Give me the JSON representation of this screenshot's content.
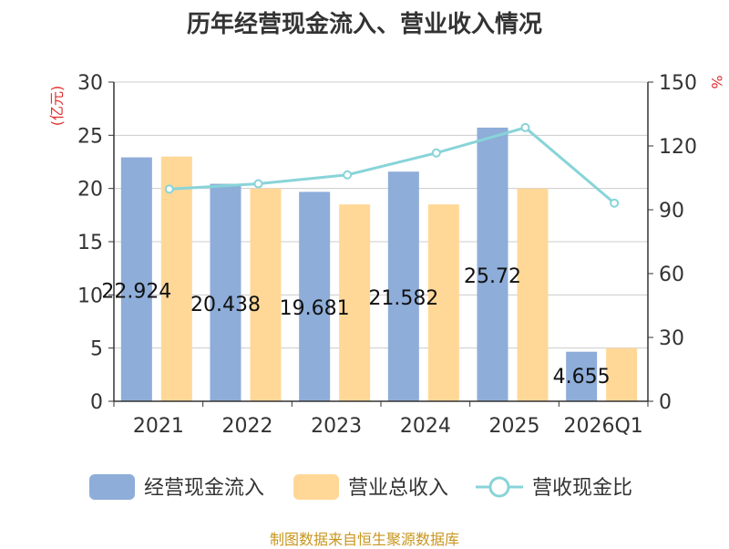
{
  "chart_data": {
    "type": "bar+line",
    "title": "历年经营现金流入、营业收入情况",
    "source": "制图数据来自恒生聚源数据库",
    "categories": [
      "2021",
      "2022",
      "2023",
      "2024",
      "2025",
      "2026Q1"
    ],
    "y_left": {
      "label": "(亿元)",
      "range": [
        0,
        30
      ],
      "ticks": [
        "0",
        "5",
        "10",
        "15",
        "20",
        "25",
        "30"
      ]
    },
    "y_right": {
      "label": "%",
      "range": [
        0,
        150
      ],
      "ticks": [
        "0",
        "30",
        "60",
        "90",
        "120",
        "150"
      ]
    },
    "series": [
      {
        "name": "经营现金流入",
        "type": "bar",
        "axis": "left",
        "color": "#8eadd9",
        "values": [
          22.924,
          20.438,
          19.681,
          21.582,
          25.72,
          4.655
        ],
        "labels": [
          "22.924",
          "20.438",
          "19.681",
          "21.582",
          "25.72",
          "4.655"
        ]
      },
      {
        "name": "营业总收入",
        "type": "bar",
        "axis": "left",
        "color": "#ffd898",
        "values": [
          23.0,
          20.0,
          18.5,
          18.5,
          20.0,
          5.0
        ]
      },
      {
        "name": "营收现金比",
        "type": "line",
        "axis": "right",
        "color": "#88d4d8",
        "values": [
          99.7,
          102.2,
          106.4,
          116.7,
          128.6,
          93.1
        ]
      }
    ]
  }
}
